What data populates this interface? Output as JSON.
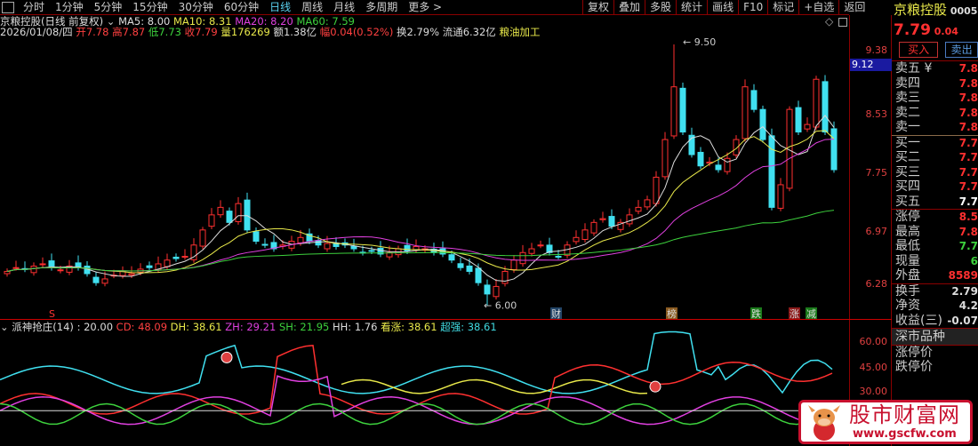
{
  "topbar": {
    "tabs": [
      "分时",
      "1分钟",
      "5分钟",
      "15分钟",
      "30分钟",
      "60分钟",
      "日线",
      "周线",
      "月线",
      "多周期",
      "更多 >"
    ],
    "active": "日线",
    "tools": [
      "复权",
      "叠加",
      "多股",
      "统计",
      "画线",
      "F10",
      "标记",
      "+自选",
      "返回"
    ]
  },
  "info": {
    "title": "京粮控股(日线 前复权)",
    "ma5": "MA5: 8.00",
    "ma10": "MA10: 8.31",
    "ma20": "MA20: 8.20",
    "ma60": "MA60: 7.59",
    "date": "2026/01/08/四",
    "open": "开7.78",
    "high": "高7.87",
    "low": "低7.73",
    "close": "收7.79",
    "vol": "量176269",
    "amount": "额1.38亿",
    "change": "幅0.04(0.52%)",
    "turnover": "换2.79%",
    "float": "流通6.32亿",
    "industry": "粮油加工"
  },
  "price_axis": [
    "9.38",
    "8.53",
    "7.75",
    "6.97",
    "6.28"
  ],
  "crosshair_price": "9.12",
  "annotations": {
    "high": "9.50",
    "low": "6.00",
    "markers": [
      "S",
      "财",
      "榜",
      "跌",
      "涨",
      "减"
    ]
  },
  "indicator": {
    "title": "派神抢庄(14)",
    "value": ": 20.00",
    "cd": "CD: 48.09",
    "dh": "DH: 38.61",
    "zh": "ZH: 29.21",
    "sh": "SH: 21.95",
    "hh": "HH: 1.76",
    "kz": "看涨: 38.61",
    "cq": "超强: 38.61",
    "axis": [
      "60.00",
      "45.00",
      "30.00"
    ]
  },
  "quote": {
    "name": "京粮控股",
    "code": "00050",
    "price": "7.79",
    "chg": "0.04",
    "buy": "买入",
    "sell": "卖出",
    "asks": [
      {
        "l": "卖五 ¥",
        "v": "7.8"
      },
      {
        "l": "卖四",
        "v": "7.8"
      },
      {
        "l": "卖三",
        "v": "7.8"
      },
      {
        "l": "卖二",
        "v": "7.8"
      },
      {
        "l": "卖一",
        "v": "7.8"
      }
    ],
    "bids": [
      {
        "l": "买一",
        "v": "7.7"
      },
      {
        "l": "买二",
        "v": "7.7"
      },
      {
        "l": "买三",
        "v": "7.7"
      },
      {
        "l": "买四",
        "v": "7.7"
      },
      {
        "l": "买五",
        "v": "7.7"
      }
    ],
    "stats": [
      {
        "l": "涨停",
        "v": "8.5"
      },
      {
        "l": "最高",
        "v": "7.8"
      },
      {
        "l": "最低",
        "v": "7.7"
      },
      {
        "l": "现量",
        "v": "6"
      },
      {
        "l": "外盘",
        "v": "8589"
      }
    ],
    "stats2": [
      {
        "l": "换手",
        "v": "2.79"
      },
      {
        "l": "净资",
        "v": "4.2"
      },
      {
        "l": "收益(三)",
        "v": "-0.07"
      }
    ],
    "market": "深市品种",
    "limit_up": "涨停价",
    "limit_down": "跌停价"
  },
  "watermark": {
    "name": "股市财富网",
    "url": "www.gscfw.com"
  },
  "kline": {
    "closes": [
      6.45,
      6.5,
      6.48,
      6.52,
      6.55,
      6.5,
      6.47,
      6.52,
      6.5,
      6.42,
      6.3,
      6.35,
      6.4,
      6.45,
      6.42,
      6.48,
      6.5,
      6.55,
      6.6,
      6.62,
      6.65,
      6.8,
      7.0,
      7.2,
      7.3,
      7.1,
      7.35,
      7.0,
      6.85,
      6.8,
      6.75,
      6.8,
      6.85,
      6.9,
      6.85,
      6.8,
      6.82,
      6.78,
      6.8,
      6.75,
      6.7,
      6.72,
      6.68,
      6.7,
      6.75,
      6.72,
      6.78,
      6.75,
      6.7,
      6.68,
      6.6,
      6.5,
      6.45,
      6.3,
      6.15,
      6.25,
      6.45,
      6.6,
      6.7,
      6.75,
      6.8,
      6.7,
      6.65,
      6.8,
      6.9,
      7.0,
      7.1,
      7.15,
      7.05,
      7.1,
      7.2,
      7.3,
      7.4,
      7.7,
      8.2,
      8.9,
      8.3,
      8.0,
      7.85,
      7.9,
      7.8,
      7.95,
      8.2,
      8.9,
      8.6,
      8.2,
      7.3,
      7.6,
      8.6,
      8.3,
      8.4,
      9.0,
      8.3,
      7.8
    ],
    "up": "#ff3030",
    "down": "#40e0f0"
  }
}
